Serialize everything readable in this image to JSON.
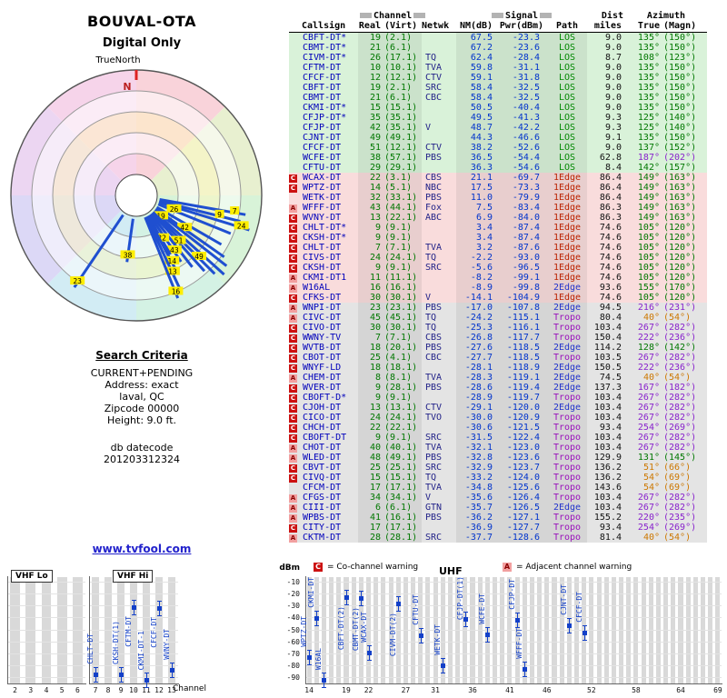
{
  "radar": {
    "title": "BOUVAL-OTA",
    "subtitle": "Digital Only",
    "north_label": "TrueNorth",
    "n_marker": "N",
    "spokes": [
      {
        "az": 100,
        "r": 122,
        "ch": "7",
        "lf": 0.9
      },
      {
        "az": 104,
        "r": 118,
        "ch": "9",
        "lf": 0.8
      },
      {
        "az": 107,
        "r": 130,
        "ch": "24",
        "lf": 0.93
      },
      {
        "az": 112,
        "r": 112,
        "ch": "26",
        "lf": 0.4
      },
      {
        "az": 120,
        "r": 108
      },
      {
        "az": 125,
        "r": 118,
        "ch": "42",
        "lf": 0.55
      },
      {
        "az": 128,
        "r": 126
      },
      {
        "az": 132,
        "r": 130,
        "ch": "19",
        "lf": 0.28
      },
      {
        "az": 135,
        "r": 122,
        "ch": "49",
        "lf": 0.8
      },
      {
        "az": 138,
        "r": 112,
        "ch": "51",
        "lf": 0.62
      },
      {
        "az": 142,
        "r": 100
      },
      {
        "az": 146,
        "r": 88,
        "ch": "43",
        "lf": 0.85
      },
      {
        "az": 150,
        "r": 75,
        "ch": "22",
        "lf": 0.75
      },
      {
        "az": 152,
        "r": 95,
        "ch": "14",
        "lf": 0.88
      },
      {
        "az": 155,
        "r": 118,
        "ch": "13",
        "lf": 0.8
      },
      {
        "az": 158,
        "r": 122,
        "ch": "16",
        "lf": 0.95
      },
      {
        "az": 188,
        "r": 74,
        "ch": "38",
        "lf": 0.92
      },
      {
        "az": 214,
        "r": 122,
        "ch": "23",
        "lf": 0.95
      }
    ]
  },
  "criteria": {
    "heading": "Search Criteria",
    "lines": [
      "CURRENT+PENDING",
      "Address: exact",
      "laval, QC",
      "Zipcode 00000",
      "Height: 9.0 ft."
    ],
    "db_label": "db datecode",
    "db_value": "201203312324",
    "site_link": "www.tvfool.com"
  },
  "table": {
    "headers": {
      "callsign": "Callsign",
      "channel_group": "Channel",
      "signal_group": "Signal",
      "real": "Real",
      "virt": "(Virt)",
      "netwk": "Netwk",
      "nm": "NM(dB)",
      "pwr": "Pwr(dBm)",
      "path": "Path",
      "dist": "Dist",
      "miles": "miles",
      "az_true": "True",
      "az_magn": "(Magn)"
    },
    "rows": [
      [
        "",
        "CBFT-DT*",
        "19",
        "(2.1)",
        "",
        "67.5",
        "-23.3",
        "LOS",
        "9.0",
        "135°",
        "(150°)",
        "g"
      ],
      [
        "",
        "CBMT-DT*",
        "21",
        "(6.1)",
        "",
        "67.2",
        "-23.6",
        "LOS",
        "9.0",
        "135°",
        "(150°)",
        "g"
      ],
      [
        "",
        "CIVM-DT*",
        "26",
        "(17.1)",
        "TQ",
        "62.4",
        "-28.4",
        "LOS",
        "8.7",
        "108°",
        "(123°)",
        "g"
      ],
      [
        "",
        "CFTM-DT",
        "10",
        "(10.1)",
        "TVA",
        "59.8",
        "-31.1",
        "LOS",
        "9.0",
        "135°",
        "(150°)",
        "g"
      ],
      [
        "",
        "CFCF-DT",
        "12",
        "(12.1)",
        "CTV",
        "59.1",
        "-31.8",
        "LOS",
        "9.0",
        "135°",
        "(150°)",
        "g"
      ],
      [
        "",
        "CBFT-DT",
        "19",
        "(2.1)",
        "SRC",
        "58.4",
        "-32.5",
        "LOS",
        "9.0",
        "135°",
        "(150°)",
        "g"
      ],
      [
        "",
        "CBMT-DT",
        "21",
        "(6.1)",
        "CBC",
        "58.4",
        "-32.5",
        "LOS",
        "9.0",
        "135°",
        "(150°)",
        "g"
      ],
      [
        "",
        "CKMI-DT*",
        "15",
        "(15.1)",
        "",
        "50.5",
        "-40.4",
        "LOS",
        "9.0",
        "135°",
        "(150°)",
        "g"
      ],
      [
        "",
        "CFJP-DT*",
        "35",
        "(35.1)",
        "",
        "49.5",
        "-41.3",
        "LOS",
        "9.3",
        "125°",
        "(140°)",
        "g"
      ],
      [
        "",
        "CFJP-DT",
        "42",
        "(35.1)",
        "V",
        "48.7",
        "-42.2",
        "LOS",
        "9.3",
        "125°",
        "(140°)",
        "g"
      ],
      [
        "",
        "CJNT-DT",
        "49",
        "(49.1)",
        "",
        "44.3",
        "-46.6",
        "LOS",
        "9.1",
        "135°",
        "(150°)",
        "g"
      ],
      [
        "",
        "CFCF-DT",
        "51",
        "(12.1)",
        "CTV",
        "38.2",
        "-52.6",
        "LOS",
        "9.0",
        "137°",
        "(152°)",
        "g"
      ],
      [
        "",
        "WCFE-DT",
        "38",
        "(57.1)",
        "PBS",
        "36.5",
        "-54.4",
        "LOS",
        "62.8",
        "187°",
        "(202°)",
        "g"
      ],
      [
        "",
        "CFTU-DT",
        "29",
        "(29.1)",
        "",
        "36.3",
        "-54.6",
        "LOS",
        "8.4",
        "142°",
        "(157°)",
        "g"
      ],
      [
        "C",
        "WCAX-DT",
        "22",
        "(3.1)",
        "CBS",
        "21.1",
        "-69.7",
        "1Edge",
        "86.4",
        "149°",
        "(163°)",
        "p"
      ],
      [
        "C",
        "WPTZ-DT",
        "14",
        "(5.1)",
        "NBC",
        "17.5",
        "-73.3",
        "1Edge",
        "86.4",
        "149°",
        "(163°)",
        "p"
      ],
      [
        "",
        "WETK-DT",
        "32",
        "(33.1)",
        "PBS",
        "11.0",
        "-79.9",
        "1Edge",
        "86.4",
        "149°",
        "(163°)",
        "p"
      ],
      [
        "A",
        "WFFF-DT",
        "43",
        "(44.1)",
        "Fox",
        "7.5",
        "-83.4",
        "1Edge",
        "86.3",
        "149°",
        "(163°)",
        "p"
      ],
      [
        "C",
        "WVNY-DT",
        "13",
        "(22.1)",
        "ABC",
        "6.9",
        "-84.0",
        "1Edge",
        "86.3",
        "149°",
        "(163°)",
        "p"
      ],
      [
        "C",
        "CHLT-DT*",
        "9",
        "(9.1)",
        "",
        "3.4",
        "-87.4",
        "1Edge",
        "74.6",
        "105°",
        "(120°)",
        "p"
      ],
      [
        "C",
        "CKSH-DT*",
        "9",
        "(9.1)",
        "",
        "3.4",
        "-87.4",
        "1Edge",
        "74.6",
        "105°",
        "(120°)",
        "p"
      ],
      [
        "C",
        "CHLT-DT",
        "7",
        "(7.1)",
        "TVA",
        "3.2",
        "-87.6",
        "1Edge",
        "74.6",
        "105°",
        "(120°)",
        "p"
      ],
      [
        "C",
        "CIVS-DT",
        "24",
        "(24.1)",
        "TQ",
        "-2.2",
        "-93.0",
        "1Edge",
        "74.6",
        "105°",
        "(120°)",
        "p"
      ],
      [
        "C",
        "CKSH-DT",
        "9",
        "(9.1)",
        "SRC",
        "-5.6",
        "-96.5",
        "1Edge",
        "74.6",
        "105°",
        "(120°)",
        "p"
      ],
      [
        "A",
        "CKMI-DT1",
        "11",
        "(11.1)",
        "",
        "-8.2",
        "-99.1",
        "1Edge",
        "74.6",
        "105°",
        "(120°)",
        "p"
      ],
      [
        "A",
        "W16AL",
        "16",
        "(16.1)",
        "",
        "-8.9",
        "-99.8",
        "2Edge",
        "93.6",
        "155°",
        "(170°)",
        "p"
      ],
      [
        "C",
        "CFKS-DT",
        "30",
        "(30.1)",
        "V",
        "-14.1",
        "-104.9",
        "1Edge",
        "74.6",
        "105°",
        "(120°)",
        "p"
      ],
      [
        "A",
        "WNPI-DT",
        "23",
        "(23.1)",
        "PBS",
        "-17.0",
        "-107.8",
        "2Edge",
        "94.5",
        "216°",
        "(231°)",
        "e"
      ],
      [
        "A",
        "CIVC-DT",
        "45",
        "(45.1)",
        "TQ",
        "-24.2",
        "-115.1",
        "Tropo",
        "80.4",
        "40°",
        "(54°)",
        "e"
      ],
      [
        "C",
        "CIVO-DT",
        "30",
        "(30.1)",
        "TQ",
        "-25.3",
        "-116.1",
        "Tropo",
        "103.4",
        "267°",
        "(282°)",
        "e"
      ],
      [
        "C",
        "WWNY-TV",
        "7",
        "(7.1)",
        "CBS",
        "-26.8",
        "-117.7",
        "Tropo",
        "150.4",
        "222°",
        "(236°)",
        "e"
      ],
      [
        "C",
        "WVTB-DT",
        "18",
        "(20.1)",
        "PBS",
        "-27.6",
        "-118.5",
        "2Edge",
        "114.2",
        "128°",
        "(142°)",
        "e"
      ],
      [
        "C",
        "CBOT-DT",
        "25",
        "(4.1)",
        "CBC",
        "-27.7",
        "-118.5",
        "Tropo",
        "103.5",
        "267°",
        "(282°)",
        "e"
      ],
      [
        "C",
        "WNYF-LD",
        "18",
        "(18.1)",
        "",
        "-28.1",
        "-118.9",
        "2Edge",
        "150.5",
        "222°",
        "(236°)",
        "e"
      ],
      [
        "A",
        "CHEM-DT",
        "8",
        "(8.1)",
        "TVA",
        "-28.3",
        "-119.1",
        "2Edge",
        "74.5",
        "40°",
        "(54°)",
        "e"
      ],
      [
        "C",
        "WVER-DT",
        "9",
        "(28.1)",
        "PBS",
        "-28.6",
        "-119.4",
        "2Edge",
        "137.3",
        "167°",
        "(182°)",
        "e"
      ],
      [
        "C",
        "CBOFT-D*",
        "9",
        "(9.1)",
        "",
        "-28.9",
        "-119.7",
        "Tropo",
        "103.4",
        "267°",
        "(282°)",
        "e"
      ],
      [
        "C",
        "CJOH-DT",
        "13",
        "(13.1)",
        "CTV",
        "-29.1",
        "-120.0",
        "2Edge",
        "103.4",
        "267°",
        "(282°)",
        "e"
      ],
      [
        "C",
        "CICO-DT",
        "24",
        "(24.1)",
        "TVO",
        "-30.0",
        "-120.9",
        "Tropo",
        "103.4",
        "267°",
        "(282°)",
        "e"
      ],
      [
        "C",
        "CHCH-DT",
        "22",
        "(22.1)",
        "",
        "-30.6",
        "-121.5",
        "Tropo",
        "93.4",
        "254°",
        "(269°)",
        "e"
      ],
      [
        "C",
        "CBOFT-DT",
        "9",
        "(9.1)",
        "SRC",
        "-31.5",
        "-122.4",
        "Tropo",
        "103.4",
        "267°",
        "(282°)",
        "e"
      ],
      [
        "A",
        "CHOT-DT",
        "40",
        "(40.1)",
        "TVA",
        "-32.1",
        "-123.0",
        "Tropo",
        "103.4",
        "267°",
        "(282°)",
        "e"
      ],
      [
        "A",
        "WLED-DT",
        "48",
        "(49.1)",
        "PBS",
        "-32.8",
        "-123.6",
        "Tropo",
        "129.9",
        "131°",
        "(145°)",
        "e"
      ],
      [
        "C",
        "CBVT-DT",
        "25",
        "(25.1)",
        "SRC",
        "-32.9",
        "-123.7",
        "Tropo",
        "136.2",
        "51°",
        "(66°)",
        "e"
      ],
      [
        "C",
        "CIVQ-DT",
        "15",
        "(15.1)",
        "TQ",
        "-33.2",
        "-124.0",
        "Tropo",
        "136.2",
        "54°",
        "(69°)",
        "e"
      ],
      [
        "",
        "CFCM-DT",
        "17",
        "(17.1)",
        "TVA",
        "-34.8",
        "-125.6",
        "Tropo",
        "143.6",
        "54°",
        "(69°)",
        "e"
      ],
      [
        "A",
        "CFGS-DT",
        "34",
        "(34.1)",
        "V",
        "-35.6",
        "-126.4",
        "Tropo",
        "103.4",
        "267°",
        "(282°)",
        "e"
      ],
      [
        "A",
        "CIII-DT",
        "6",
        "(6.1)",
        "GTN",
        "-35.7",
        "-126.5",
        "2Edge",
        "103.4",
        "267°",
        "(282°)",
        "e"
      ],
      [
        "A",
        "WPBS-DT",
        "41",
        "(16.1)",
        "PBS",
        "-36.2",
        "-127.1",
        "Tropo",
        "155.2",
        "220°",
        "(235°)",
        "e"
      ],
      [
        "C",
        "CITY-DT",
        "17",
        "(17.1)",
        "",
        "-36.9",
        "-127.7",
        "Tropo",
        "93.4",
        "254°",
        "(269°)",
        "e"
      ],
      [
        "A",
        "CKTM-DT",
        "28",
        "(28.1)",
        "SRC",
        "-37.7",
        "-128.6",
        "Tropo",
        "81.4",
        "40°",
        "(54°)",
        "e"
      ]
    ]
  },
  "legend": {
    "co_letter": "C",
    "co_text": "= Co-channel warning",
    "adj_letter": "A",
    "adj_text": "= Adjacent channel warning"
  },
  "bottom_chart": {
    "dbm_label": "dBm",
    "y_ticks": [
      -10,
      -20,
      -30,
      -40,
      -50,
      -60,
      -70,
      -80,
      -90
    ],
    "channel_axis_label": "Channel",
    "vhf_lo": {
      "label": "VHF Lo",
      "channels": [
        2,
        3,
        4,
        5,
        6
      ],
      "markers": []
    },
    "vhf_hi": {
      "label": "VHF Hi",
      "channels": [
        7,
        8,
        9,
        10,
        11,
        12,
        13
      ],
      "markers": [
        {
          "ch": 10,
          "dbm": -31.1,
          "label": "CFTM-DT",
          "side": "below"
        },
        {
          "ch": 12,
          "dbm": -31.8,
          "label": "CFCF-DT",
          "side": "below"
        },
        {
          "ch": 7,
          "dbm": -87.6,
          "label": "CHLT-DT",
          "side": "above"
        },
        {
          "ch": 9,
          "dbm": -87.4,
          "label": "CKSH-DT(1)",
          "side": "above"
        },
        {
          "ch": 11,
          "dbm": -99.1,
          "label": "CKMI-DT-1",
          "side": "above"
        },
        {
          "ch": 13,
          "dbm": -84.0,
          "label": "WVNY-DT",
          "side": "above"
        }
      ]
    },
    "uhf": {
      "label": "UHF",
      "tick_channels": [
        14,
        19,
        22,
        27,
        31,
        36,
        41,
        46,
        52,
        58,
        64,
        69
      ],
      "markers": [
        {
          "ch": 14,
          "dbm": -73.3,
          "label": "WPTZ-DT",
          "side": "above"
        },
        {
          "ch": 15,
          "dbm": -40.4,
          "label": "CKMI-DT",
          "side": "above"
        },
        {
          "ch": 16,
          "dbm": -99.8,
          "label": "W16AL",
          "side": "above"
        },
        {
          "ch": 19,
          "dbm": -23.3,
          "label": "CBFT-DT(2)",
          "side": "below"
        },
        {
          "ch": 21,
          "dbm": -23.6,
          "label": "CBMT-DT(2)",
          "side": "below"
        },
        {
          "ch": 22,
          "dbm": -69.7,
          "label": "WCAX-DT",
          "side": "above"
        },
        {
          "ch": 26,
          "dbm": -28.4,
          "label": "CIVM-DT(2)",
          "side": "below"
        },
        {
          "ch": 29,
          "dbm": -54.6,
          "label": "CFTU-DT",
          "side": "above"
        },
        {
          "ch": 32,
          "dbm": -79.9,
          "label": "WETK-DT",
          "side": "above"
        },
        {
          "ch": 35,
          "dbm": -41.3,
          "label": "CFJP-DT(1)",
          "side": "above"
        },
        {
          "ch": 38,
          "dbm": -54.4,
          "label": "WCFE-DT",
          "side": "above"
        },
        {
          "ch": 42,
          "dbm": -42.2,
          "label": "CFJP-DT",
          "side": "above"
        },
        {
          "ch": 43,
          "dbm": -83.4,
          "label": "WFFF-DT",
          "side": "above"
        },
        {
          "ch": 49,
          "dbm": -46.6,
          "label": "CJNT-DT",
          "side": "above"
        },
        {
          "ch": 51,
          "dbm": -52.6,
          "label": "CFCF-DT",
          "side": "above"
        }
      ]
    }
  }
}
